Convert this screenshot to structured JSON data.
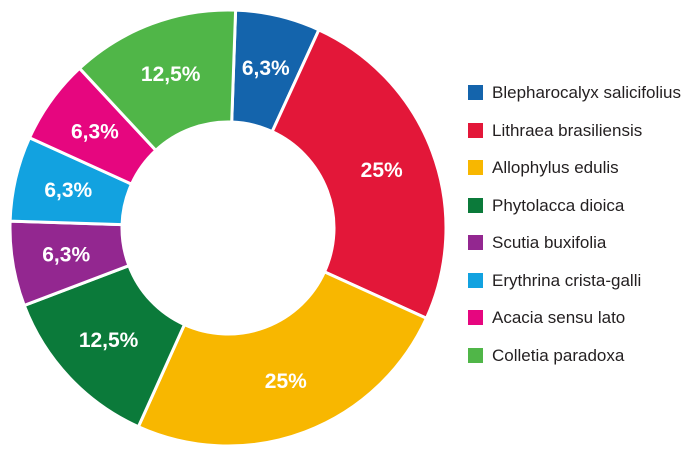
{
  "chart_data": {
    "type": "pie",
    "variant": "donut",
    "title": "",
    "unit": "%",
    "decimal_separator": ",",
    "start_angle_deg": 2,
    "direction": "clockwise",
    "legend_position": "right",
    "segment_label_color": "#ffffff",
    "legend_text_color": "#231f20",
    "gap_color": "#ffffff",
    "items": [
      {
        "name": "Blepharocalyx salicifolius",
        "value": 6.3,
        "label": "6,3%",
        "color": "#1464ac"
      },
      {
        "name": "Lithraea brasiliensis",
        "value": 25,
        "label": "25%",
        "color": "#e31739"
      },
      {
        "name": "Allophylus edulis",
        "value": 25,
        "label": "25%",
        "color": "#f8b700"
      },
      {
        "name": "Phytolacca dioica",
        "value": 12.5,
        "label": "12,5%",
        "color": "#0b7a3a"
      },
      {
        "name": "Scutia buxifolia",
        "value": 6.3,
        "label": "6,3%",
        "color": "#932790"
      },
      {
        "name": "Erythrina crista-galli",
        "value": 6.3,
        "label": "6,3%",
        "color": "#12a2e0"
      },
      {
        "name": "Acacia sensu lato",
        "value": 6.3,
        "label": "6,3%",
        "color": "#e6067f"
      },
      {
        "name": "Colletia paradoxa",
        "value": 12.5,
        "label": "12,5%",
        "color": "#50b648"
      }
    ]
  }
}
